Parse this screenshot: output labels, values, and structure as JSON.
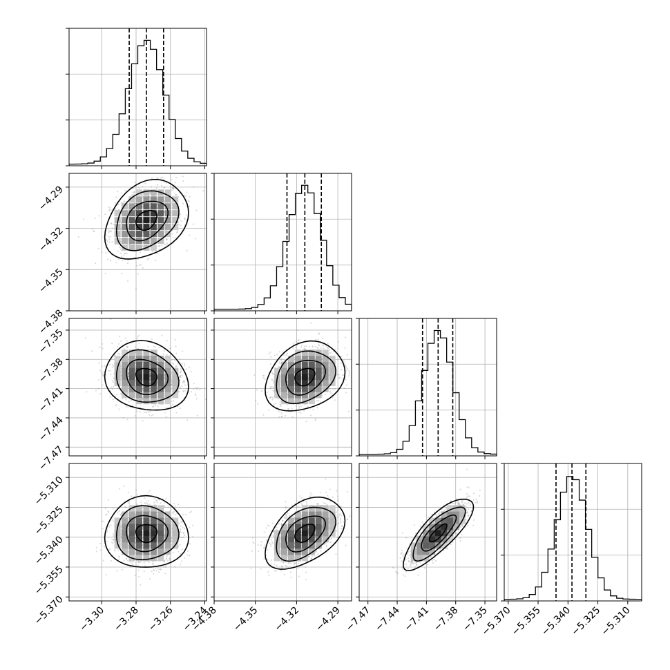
{
  "chart_data": {
    "type": "corner",
    "title": "",
    "parameters": [
      {
        "mean": -3.274,
        "sd": 0.0105,
        "ticks": [
          -3.3,
          -3.28,
          -3.26,
          -3.24
        ],
        "tick_labels": [
          "−3.30",
          "−3.28",
          "−3.26",
          "−3.24"
        ],
        "range": [
          -3.319,
          -3.239
        ],
        "quantiles": [
          -3.284,
          -3.274,
          -3.264
        ]
      },
      {
        "mean": -4.314,
        "sd": 0.0125,
        "ticks": [
          -4.38,
          -4.35,
          -4.32,
          -4.29
        ],
        "tick_labels": [
          "−4.38",
          "−4.35",
          "−4.32",
          "−4.29"
        ],
        "range": [
          -4.38,
          -4.28
        ],
        "quantiles": [
          -4.327,
          -4.314,
          -4.302
        ]
      },
      {
        "mean": -7.398,
        "sd": 0.0155,
        "ticks": [
          -7.47,
          -7.44,
          -7.41,
          -7.38,
          -7.35
        ],
        "tick_labels": [
          "−7.47",
          "−7.44",
          "−7.41",
          "−7.38",
          "−7.35"
        ],
        "range": [
          -7.479,
          -7.338
        ],
        "quantiles": [
          -7.414,
          -7.398,
          -7.383
        ]
      },
      {
        "mean": -5.338,
        "sd": 0.0078,
        "ticks": [
          -5.37,
          -5.355,
          -5.34,
          -5.325,
          -5.31
        ],
        "tick_labels": [
          "−5.370",
          "−5.355",
          "−5.340",
          "−5.325",
          "−5.310"
        ],
        "range": [
          -5.372,
          -5.303
        ],
        "quantiles": [
          -5.346,
          -5.338,
          -5.331
        ]
      }
    ],
    "correlations": {
      "1-0": 0.3,
      "2-0": -0.15,
      "2-1": 0.25,
      "3-0": 0.0,
      "3-1": 0.45,
      "3-2": 0.8
    },
    "contour_levels_sigma": [
      0.5,
      1.0,
      1.5,
      2.0
    ],
    "x_axis_labels": [
      "",
      "",
      "",
      ""
    ],
    "y_axis_labels": [
      "",
      "",
      "",
      ""
    ],
    "grid": true
  }
}
